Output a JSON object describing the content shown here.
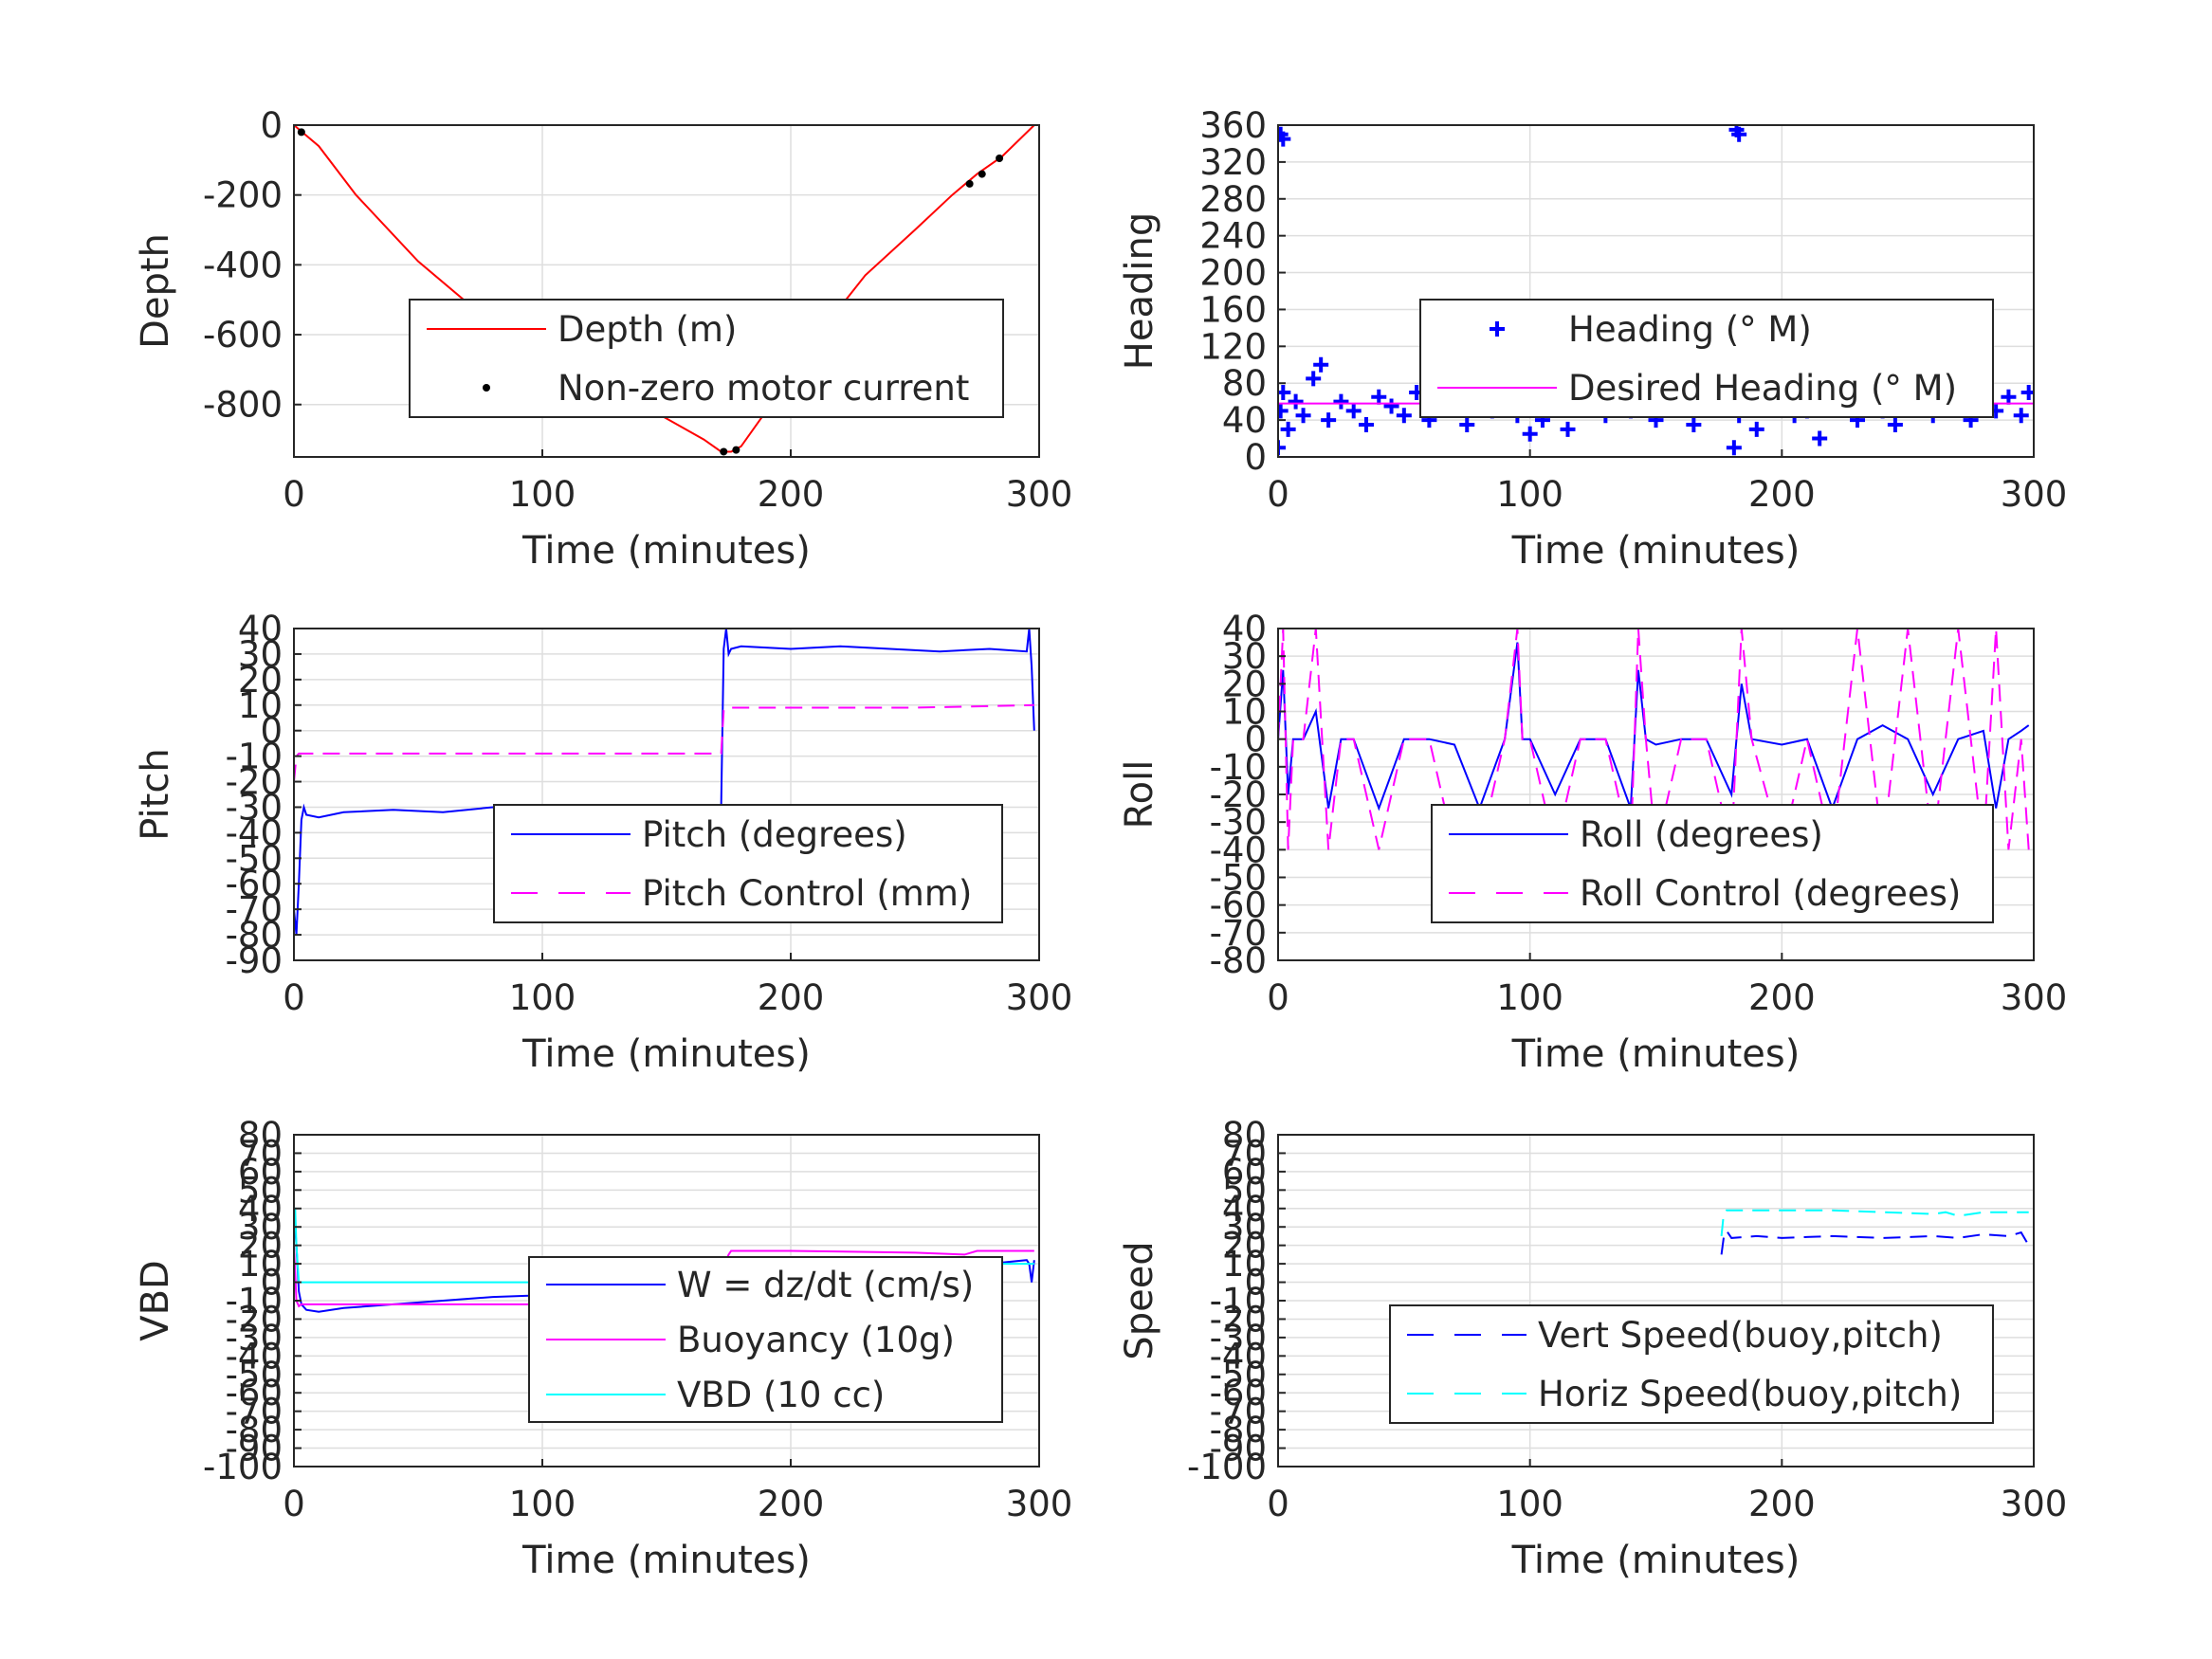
{
  "figure": {
    "background": "#ffffff",
    "text_color": "#262626",
    "grid_color": "#dedede"
  },
  "chart_data": [
    {
      "type": "line",
      "xlabel": "Time (minutes)",
      "ylabel": "Depth",
      "xlim": [
        0,
        300
      ],
      "ylim": [
        -950,
        0
      ],
      "xticks": [
        0,
        100,
        200,
        300
      ],
      "yticks": [
        0,
        -200,
        -400,
        -600,
        -800
      ],
      "grid": true,
      "legend_position": "lower-right",
      "series": [
        {
          "name": "Depth (m)",
          "style": "line",
          "color": "#ff0000",
          "x": [
            0,
            10,
            25,
            50,
            75,
            100,
            125,
            150,
            165,
            172,
            176,
            180,
            190,
            200,
            210,
            230,
            250,
            265,
            275,
            285,
            298
          ],
          "y": [
            0,
            -60,
            -200,
            -390,
            -540,
            -650,
            -740,
            -840,
            -900,
            -935,
            -935,
            -920,
            -820,
            -700,
            -610,
            -430,
            -300,
            -200,
            -140,
            -90,
            0
          ]
        },
        {
          "name": "Non-zero motor current",
          "style": "dots",
          "color": "#000000",
          "x": [
            3,
            173,
            178,
            272,
            277,
            284
          ],
          "y": [
            -20,
            -935,
            -930,
            -168,
            -140,
            -95
          ]
        }
      ]
    },
    {
      "type": "scatter",
      "xlabel": "Time (minutes)",
      "ylabel": "Heading",
      "xlim": [
        0,
        300
      ],
      "ylim": [
        0,
        360
      ],
      "xticks": [
        0,
        100,
        200,
        300
      ],
      "yticks": [
        0,
        40,
        80,
        120,
        160,
        200,
        240,
        280,
        320,
        360
      ],
      "grid": true,
      "legend_position": "upper-right",
      "series": [
        {
          "name": "Heading (° M)",
          "style": "plus",
          "color": "#0000ff",
          "x": [
            0,
            1,
            2,
            4,
            7,
            10,
            14,
            17,
            20,
            25,
            30,
            35,
            40,
            45,
            50,
            55,
            60,
            65,
            70,
            75,
            80,
            85,
            90,
            95,
            100,
            105,
            110,
            115,
            120,
            125,
            130,
            135,
            140,
            145,
            150,
            155,
            160,
            165,
            170,
            175,
            178,
            181,
            183,
            186,
            190,
            195,
            200,
            205,
            210,
            215,
            220,
            225,
            230,
            235,
            240,
            245,
            250,
            255,
            260,
            265,
            270,
            275,
            280,
            285,
            290,
            295,
            298,
            1,
            2,
            182,
            183,
            177,
            141,
            236
          ],
          "y": [
            10,
            50,
            70,
            30,
            60,
            45,
            85,
            100,
            40,
            60,
            50,
            35,
            65,
            55,
            45,
            70,
            40,
            55,
            65,
            35,
            60,
            50,
            75,
            45,
            25,
            40,
            65,
            30,
            55,
            70,
            45,
            60,
            50,
            95,
            40,
            55,
            65,
            35,
            60,
            70,
            150,
            10,
            45,
            55,
            30,
            60,
            75,
            45,
            50,
            20,
            55,
            65,
            40,
            120,
            50,
            35,
            60,
            70,
            45,
            55,
            80,
            40,
            75,
            50,
            65,
            45,
            70,
            350,
            345,
            355,
            350,
            140,
            110,
            115
          ]
        },
        {
          "name": "Desired Heading (° M)",
          "style": "line",
          "color": "#ff00ff",
          "x": [
            0,
            300
          ],
          "y": [
            58,
            58
          ]
        }
      ]
    },
    {
      "type": "line",
      "xlabel": "Time (minutes)",
      "ylabel": "Pitch",
      "xlim": [
        0,
        300
      ],
      "ylim": [
        -90,
        40
      ],
      "xticks": [
        0,
        100,
        200,
        300
      ],
      "yticks": [
        40,
        30,
        20,
        10,
        0,
        -10,
        -20,
        -30,
        -40,
        -50,
        -60,
        -70,
        -80,
        -90
      ],
      "grid": true,
      "legend_position": "lower-right",
      "series": [
        {
          "name": "Pitch (degrees)",
          "style": "line",
          "color": "#0000ff",
          "x": [
            0,
            1,
            2,
            3,
            4,
            5,
            10,
            20,
            40,
            60,
            80,
            100,
            120,
            140,
            160,
            172,
            173,
            174,
            175,
            176,
            180,
            200,
            220,
            240,
            260,
            280,
            295,
            296,
            297,
            298
          ],
          "y": [
            -70,
            -80,
            -60,
            -35,
            -30,
            -33,
            -34,
            -32,
            -31,
            -32,
            -30,
            -31,
            -30,
            -31,
            -30,
            -30,
            32,
            40,
            30,
            32,
            33,
            32,
            33,
            32,
            31,
            32,
            31,
            40,
            25,
            0
          ]
        },
        {
          "name": "Pitch Control (mm)",
          "style": "dashed",
          "color": "#ff00ff",
          "x": [
            0,
            1,
            2,
            3,
            50,
            100,
            150,
            172,
            173,
            174,
            200,
            250,
            298
          ],
          "y": [
            -20,
            -10,
            -9,
            -9,
            -9,
            -9,
            -9,
            -9,
            8,
            9,
            9,
            9,
            10
          ]
        }
      ]
    },
    {
      "type": "line",
      "xlabel": "Time (minutes)",
      "ylabel": "Roll",
      "xlim": [
        0,
        300
      ],
      "ylim": [
        -80,
        40
      ],
      "xticks": [
        0,
        100,
        200,
        300
      ],
      "yticks": [
        40,
        30,
        20,
        10,
        0,
        -10,
        -20,
        -30,
        -40,
        -50,
        -60,
        -70,
        -80
      ],
      "grid": true,
      "legend_position": "lower-right",
      "series": [
        {
          "name": "Roll (degrees)",
          "style": "line",
          "color": "#0000ff",
          "x": [
            0,
            2,
            4,
            6,
            10,
            15,
            20,
            25,
            30,
            40,
            50,
            60,
            70,
            80,
            90,
            95,
            97,
            100,
            110,
            120,
            130,
            140,
            143,
            146,
            150,
            160,
            170,
            180,
            184,
            188,
            200,
            210,
            220,
            230,
            240,
            250,
            260,
            270,
            280,
            285,
            290,
            295,
            298
          ],
          "y": [
            0,
            25,
            -20,
            0,
            0,
            10,
            -25,
            0,
            0,
            -25,
            0,
            0,
            -2,
            -25,
            0,
            35,
            0,
            0,
            -20,
            0,
            0,
            -25,
            25,
            0,
            -2,
            0,
            0,
            -20,
            20,
            0,
            -2,
            0,
            -25,
            0,
            5,
            0,
            -20,
            0,
            3,
            -25,
            0,
            3,
            5
          ]
        },
        {
          "name": "Roll Control (degrees)",
          "style": "dashed",
          "color": "#ff00ff",
          "x": [
            0,
            2,
            4,
            6,
            10,
            15,
            20,
            25,
            30,
            40,
            50,
            60,
            70,
            80,
            90,
            95,
            97,
            100,
            110,
            120,
            130,
            140,
            143,
            146,
            150,
            160,
            170,
            180,
            184,
            188,
            200,
            210,
            220,
            230,
            240,
            250,
            260,
            270,
            280,
            285,
            290,
            295,
            298
          ],
          "y": [
            0,
            40,
            -40,
            0,
            0,
            40,
            -40,
            0,
            0,
            -40,
            0,
            0,
            -40,
            -40,
            0,
            40,
            0,
            0,
            -40,
            0,
            0,
            -40,
            40,
            0,
            -40,
            0,
            0,
            -40,
            40,
            0,
            -40,
            0,
            -40,
            40,
            -40,
            40,
            -40,
            40,
            -40,
            40,
            -40,
            0,
            -40
          ]
        }
      ]
    },
    {
      "type": "line",
      "xlabel": "Time (minutes)",
      "ylabel": "VBD",
      "xlim": [
        0,
        300
      ],
      "ylim": [
        -100,
        80
      ],
      "xticks": [
        0,
        100,
        200,
        300
      ],
      "yticks": [
        80,
        70,
        60,
        50,
        40,
        30,
        20,
        10,
        0,
        -10,
        -20,
        -30,
        -40,
        -50,
        -60,
        -70,
        -80,
        -90,
        -100
      ],
      "ytick_labels": [
        "80",
        "70",
        "60",
        "50",
        "40",
        "30",
        "20",
        "10",
        "0",
        "-10",
        "-20",
        "-30",
        "-40",
        "-50",
        "-60",
        "-70",
        "-80",
        "-90",
        "-100"
      ],
      "grid": true,
      "legend_position": "lower-right",
      "series": [
        {
          "name": "W = dz/dt (cm/s)",
          "style": "line",
          "color": "#0000ff",
          "x": [
            0,
            1,
            2,
            3,
            5,
            10,
            20,
            40,
            60,
            80,
            100,
            120,
            140,
            160,
            170,
            172,
            174,
            176,
            180,
            200,
            220,
            240,
            260,
            280,
            295,
            296,
            297,
            298
          ],
          "y": [
            40,
            20,
            -5,
            -12,
            -15,
            -16,
            -14,
            -12,
            -10,
            -8,
            -7,
            -6,
            -5,
            -4,
            -3,
            5,
            8,
            10,
            12,
            11,
            12,
            11,
            12,
            10,
            12,
            10,
            0,
            12
          ]
        },
        {
          "name": "Buoyancy (10g)",
          "style": "line",
          "color": "#ff00ff",
          "x": [
            0,
            1,
            2,
            3,
            50,
            100,
            150,
            170,
            172,
            173,
            174,
            175,
            176,
            200,
            250,
            270,
            275,
            298
          ],
          "y": [
            20,
            -10,
            -13,
            -12,
            -12,
            -12,
            -12,
            -12,
            -5,
            5,
            12,
            15,
            17,
            17,
            16,
            15,
            17,
            17
          ]
        },
        {
          "name": "VBD (10 cc)",
          "style": "line",
          "color": "#00ffff",
          "x": [
            0,
            0.5,
            1,
            2,
            3,
            50,
            100,
            150,
            172,
            173,
            174,
            200,
            250,
            298
          ],
          "y": [
            40,
            40,
            20,
            0,
            0,
            0,
            0,
            0,
            0,
            10,
            10,
            10,
            10,
            10
          ]
        }
      ]
    },
    {
      "type": "line",
      "xlabel": "Time (minutes)",
      "ylabel": "Speed",
      "xlim": [
        0,
        300
      ],
      "ylim": [
        -100,
        80
      ],
      "xticks": [
        0,
        100,
        200,
        300
      ],
      "yticks": [
        80,
        70,
        60,
        50,
        40,
        30,
        20,
        10,
        0,
        -10,
        -20,
        -30,
        -40,
        -50,
        -60,
        -70,
        -80,
        -90,
        -100
      ],
      "ytick_labels": [
        "80",
        "70",
        "60",
        "50",
        "40",
        "30",
        "20",
        "10",
        "0",
        "-10",
        "-20",
        "-30",
        "-40",
        "-50",
        "-60",
        "-70",
        "-80",
        "-90",
        "-100"
      ],
      "grid": true,
      "legend_position": "lower-right",
      "series": [
        {
          "name": "Vert Speed(buoy,pitch)",
          "style": "dashed",
          "color": "#0000ff",
          "x": [
            176,
            177,
            178,
            180,
            190,
            200,
            220,
            240,
            260,
            270,
            280,
            290,
            295,
            298
          ],
          "y": [
            15,
            25,
            28,
            24,
            25,
            24,
            25,
            24,
            25,
            24,
            26,
            25,
            27,
            20
          ]
        },
        {
          "name": "Horiz Speed(buoy,pitch)",
          "style": "dashed",
          "color": "#00ffff",
          "x": [
            176,
            177,
            178,
            200,
            220,
            240,
            260,
            265,
            270,
            280,
            298
          ],
          "y": [
            25,
            38,
            39,
            39,
            39,
            38,
            37,
            38,
            36,
            38,
            38
          ]
        }
      ]
    }
  ]
}
